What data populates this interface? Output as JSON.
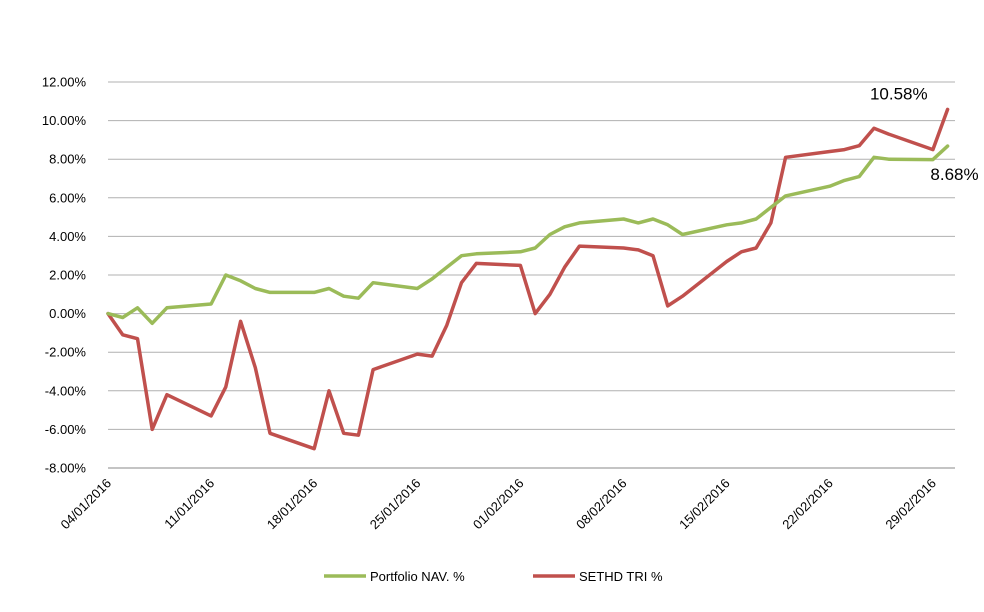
{
  "chart_data": {
    "type": "line",
    "title": "",
    "xlabel": "",
    "ylabel": "",
    "ylim": [
      -8,
      12
    ],
    "y_ticks": [
      "12.00%",
      "10.00%",
      "8.00%",
      "6.00%",
      "4.00%",
      "2.00%",
      "0.00%",
      "-2.00%",
      "-4.00%",
      "-6.00%",
      "-8.00%"
    ],
    "x_ticks": [
      "04/01/2016",
      "11/01/2016",
      "18/01/2016",
      "25/01/2016",
      "01/02/2016",
      "08/02/2016",
      "15/02/2016",
      "22/02/2016",
      "29/02/2016"
    ],
    "grid": "horizontal",
    "legend_position": "bottom",
    "x": [
      "2016-01-04",
      "2016-01-05",
      "2016-01-06",
      "2016-01-07",
      "2016-01-08",
      "2016-01-11",
      "2016-01-12",
      "2016-01-13",
      "2016-01-14",
      "2016-01-15",
      "2016-01-18",
      "2016-01-19",
      "2016-01-20",
      "2016-01-21",
      "2016-01-22",
      "2016-01-25",
      "2016-01-26",
      "2016-01-27",
      "2016-01-28",
      "2016-01-29",
      "2016-02-01",
      "2016-02-02",
      "2016-02-03",
      "2016-02-04",
      "2016-02-05",
      "2016-02-08",
      "2016-02-09",
      "2016-02-10",
      "2016-02-11",
      "2016-02-12",
      "2016-02-15",
      "2016-02-16",
      "2016-02-17",
      "2016-02-18",
      "2016-02-19",
      "2016-02-22",
      "2016-02-23",
      "2016-02-24",
      "2016-02-25",
      "2016-02-26",
      "2016-02-29",
      "2016-03-01"
    ],
    "series": [
      {
        "name": "Portfolio NAV. %",
        "color": "#9bbb59",
        "values": [
          0.0,
          -0.2,
          0.3,
          -0.5,
          0.3,
          0.5,
          2.0,
          1.7,
          1.3,
          1.1,
          1.1,
          1.3,
          0.9,
          0.8,
          1.6,
          1.3,
          1.8,
          2.4,
          3.0,
          3.1,
          3.2,
          3.4,
          4.1,
          4.5,
          4.7,
          4.9,
          4.7,
          4.9,
          4.6,
          4.1,
          4.6,
          4.7,
          4.9,
          5.5,
          6.1,
          6.6,
          6.9,
          7.1,
          8.1,
          8.0,
          7.98,
          8.68
        ]
      },
      {
        "name": "SETHD TRI %",
        "color": "#c0504d",
        "values": [
          0.0,
          -1.1,
          -1.3,
          -6.0,
          -4.2,
          -5.3,
          -3.8,
          -0.4,
          -2.8,
          -6.2,
          -7.0,
          -4.0,
          -6.2,
          -6.3,
          -2.9,
          -2.1,
          -2.2,
          -0.6,
          1.6,
          2.6,
          2.5,
          0.0,
          1.0,
          2.4,
          3.5,
          3.4,
          3.3,
          3.0,
          0.4,
          0.9,
          2.7,
          3.2,
          3.4,
          4.7,
          8.1,
          8.4,
          8.5,
          8.7,
          9.6,
          9.3,
          8.5,
          10.58
        ]
      }
    ],
    "annotations": [
      {
        "text": "10.58%",
        "series": "SETHD TRI %"
      },
      {
        "text": "8.68%",
        "series": "Portfolio NAV. %"
      }
    ]
  }
}
